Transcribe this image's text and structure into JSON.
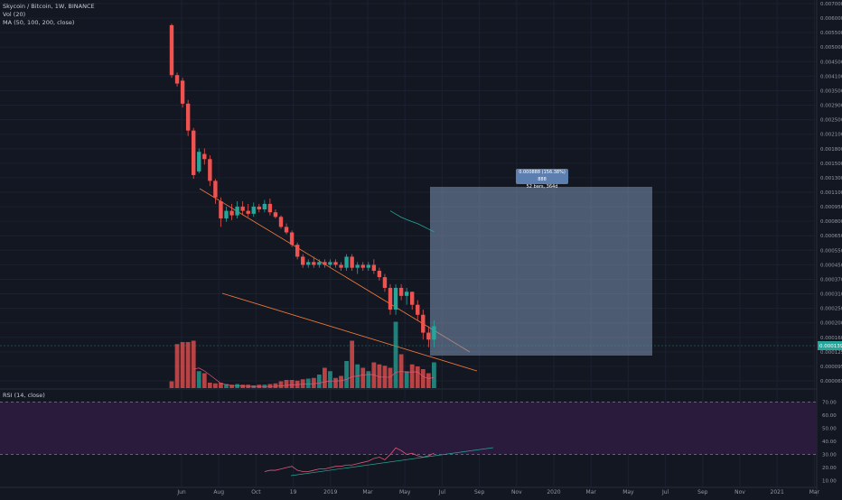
{
  "header": {
    "symbol_line": "Skycoin / Bitcoin, 1W, BINANCE",
    "vol_label": "Vol (20)",
    "ma_label": "MA (50, 100, 200, close)"
  },
  "rsi_panel": {
    "label": "RSI (14, close)"
  },
  "measure": {
    "line1": "0.000888 (156.38%) 888",
    "line2": "52 bars, 364d"
  },
  "price_axis": {
    "ticks": [
      "0.007000",
      "0.006000",
      "0.005500",
      "0.005000",
      "0.004500",
      "0.004100",
      "0.003500",
      "0.002900",
      "0.002500",
      "0.002100",
      "0.001800",
      "0.001500",
      "0.001300",
      "0.001100",
      "0.000950",
      "0.000800",
      "0.000650",
      "0.000550",
      "0.000450",
      "0.000370",
      "0.000310",
      "0.000250",
      "0.000200",
      "0.000160",
      "0.000125",
      "0.000095",
      "0.000069"
    ],
    "current_price": "0.000139"
  },
  "rsi_axis": {
    "ticks": [
      "70.00",
      "60.00",
      "50.00",
      "40.00",
      "30.00",
      "20.00",
      "10.00"
    ]
  },
  "time_axis": {
    "labels": [
      "Jun",
      "Aug",
      "Oct",
      "19",
      "2019",
      "Mar",
      "May",
      "Jul",
      "Sep",
      "Nov",
      "2020",
      "Mar",
      "May",
      "Jul",
      "Sep",
      "Nov",
      "2021",
      "Mar"
    ]
  },
  "colors": {
    "up": "#26a69a",
    "down": "#ef5350",
    "background": "#131722",
    "trendline": "#f57c3b",
    "ma": "#26a69a",
    "rsi_line": "#e0577a",
    "rsi_band": "#2a1b3d",
    "measure_box": "#7e93b5"
  },
  "chart_data": [
    {
      "type": "candlestick",
      "title": "Skycoin / Bitcoin, 1W, BINANCE",
      "y_scale": "log",
      "ylim": [
        6e-05,
        0.0075
      ],
      "candles": [
        {
          "o": 0.0056,
          "h": 0.0057,
          "l": 0.0029,
          "c": 0.003
        },
        {
          "o": 0.003,
          "h": 0.0031,
          "l": 0.0026,
          "c": 0.0027
        },
        {
          "o": 0.0028,
          "h": 0.0029,
          "l": 0.002,
          "c": 0.0021
        },
        {
          "o": 0.0021,
          "h": 0.0022,
          "l": 0.0014,
          "c": 0.0015
        },
        {
          "o": 0.0015,
          "h": 0.00155,
          "l": 0.00082,
          "c": 0.00086
        },
        {
          "o": 0.0009,
          "h": 0.0012,
          "l": 0.00088,
          "c": 0.00115
        },
        {
          "o": 0.00112,
          "h": 0.0012,
          "l": 0.00098,
          "c": 0.00105
        },
        {
          "o": 0.00105,
          "h": 0.0011,
          "l": 0.00075,
          "c": 0.0008
        },
        {
          "o": 0.0008,
          "h": 0.00082,
          "l": 0.0006,
          "c": 0.00065
        },
        {
          "o": 0.00062,
          "h": 0.00065,
          "l": 0.00045,
          "c": 0.0005
        },
        {
          "o": 0.0005,
          "h": 0.00058,
          "l": 0.00048,
          "c": 0.00055
        },
        {
          "o": 0.00055,
          "h": 0.0006,
          "l": 0.00049,
          "c": 0.00052
        },
        {
          "o": 0.00052,
          "h": 0.00062,
          "l": 0.0005,
          "c": 0.00058
        },
        {
          "o": 0.00058,
          "h": 0.00062,
          "l": 0.00052,
          "c": 0.00055
        },
        {
          "o": 0.00055,
          "h": 0.0006,
          "l": 0.00051,
          "c": 0.00053
        },
        {
          "o": 0.00053,
          "h": 0.00061,
          "l": 0.00051,
          "c": 0.00058
        },
        {
          "o": 0.00058,
          "h": 0.0006,
          "l": 0.00054,
          "c": 0.00056
        },
        {
          "o": 0.00056,
          "h": 0.00063,
          "l": 0.00054,
          "c": 0.0006
        },
        {
          "o": 0.0006,
          "h": 0.00064,
          "l": 0.00052,
          "c": 0.00054
        },
        {
          "o": 0.00054,
          "h": 0.00056,
          "l": 0.0005,
          "c": 0.00051
        },
        {
          "o": 0.00051,
          "h": 0.00052,
          "l": 0.00044,
          "c": 0.00045
        },
        {
          "o": 0.00045,
          "h": 0.00047,
          "l": 0.00041,
          "c": 0.00042
        },
        {
          "o": 0.00042,
          "h": 0.00043,
          "l": 0.00035,
          "c": 0.00036
        },
        {
          "o": 0.00036,
          "h": 0.00037,
          "l": 0.0003,
          "c": 0.00031
        },
        {
          "o": 0.00031,
          "h": 0.00032,
          "l": 0.00027,
          "c": 0.00028
        },
        {
          "o": 0.00028,
          "h": 0.0003,
          "l": 0.00027,
          "c": 0.00029
        },
        {
          "o": 0.00029,
          "h": 0.00031,
          "l": 0.00027,
          "c": 0.00028
        },
        {
          "o": 0.00028,
          "h": 0.0003,
          "l": 0.00027,
          "c": 0.00029
        },
        {
          "o": 0.00029,
          "h": 0.0003,
          "l": 0.00027,
          "c": 0.00028
        },
        {
          "o": 0.00028,
          "h": 0.0003,
          "l": 0.00027,
          "c": 0.00029
        },
        {
          "o": 0.00029,
          "h": 0.0003,
          "l": 0.00027,
          "c": 0.00028
        },
        {
          "o": 0.00028,
          "h": 0.00029,
          "l": 0.00026,
          "c": 0.00027
        },
        {
          "o": 0.00027,
          "h": 0.00032,
          "l": 0.00026,
          "c": 0.00031
        },
        {
          "o": 0.00031,
          "h": 0.00032,
          "l": 0.00026,
          "c": 0.00027
        },
        {
          "o": 0.00027,
          "h": 0.00029,
          "l": 0.00025,
          "c": 0.00028
        },
        {
          "o": 0.00028,
          "h": 0.00029,
          "l": 0.00026,
          "c": 0.00027
        },
        {
          "o": 0.00027,
          "h": 0.00029,
          "l": 0.00026,
          "c": 0.00028
        },
        {
          "o": 0.00028,
          "h": 0.0003,
          "l": 0.00025,
          "c": 0.00026
        },
        {
          "o": 0.00026,
          "h": 0.00027,
          "l": 0.00023,
          "c": 0.00024
        },
        {
          "o": 0.00024,
          "h": 0.00025,
          "l": 0.0002,
          "c": 0.00021
        },
        {
          "o": 0.00021,
          "h": 0.00022,
          "l": 0.00015,
          "c": 0.00016
        },
        {
          "o": 0.00016,
          "h": 0.00022,
          "l": 0.00015,
          "c": 0.00021
        },
        {
          "o": 0.00021,
          "h": 0.00022,
          "l": 0.00018,
          "c": 0.00019
        },
        {
          "o": 0.00019,
          "h": 0.00021,
          "l": 0.00017,
          "c": 0.0002
        },
        {
          "o": 0.0002,
          "h": 0.0002,
          "l": 0.00016,
          "c": 0.00017
        },
        {
          "o": 0.00017,
          "h": 0.00018,
          "l": 0.00014,
          "c": 0.00015
        },
        {
          "o": 0.00015,
          "h": 0.00016,
          "l": 0.00011,
          "c": 0.00012
        },
        {
          "o": 0.00012,
          "h": 0.00013,
          "l": 0.0001,
          "c": 0.00011
        },
        {
          "o": 0.00011,
          "h": 0.00014,
          "l": 0.0001,
          "c": 0.00013
        }
      ],
      "volume": [
        0.1,
        0.65,
        0.68,
        0.68,
        0.7,
        0.25,
        0.22,
        0.08,
        0.07,
        0.08,
        0.06,
        0.05,
        0.06,
        0.05,
        0.05,
        0.04,
        0.05,
        0.05,
        0.06,
        0.07,
        0.1,
        0.12,
        0.12,
        0.11,
        0.13,
        0.14,
        0.15,
        0.2,
        0.3,
        0.25,
        0.15,
        0.18,
        0.4,
        0.7,
        0.35,
        0.3,
        0.25,
        0.38,
        0.35,
        0.33,
        0.3,
        0.98,
        0.5,
        0.25,
        0.35,
        0.32,
        0.28,
        0.22,
        0.38
      ]
    },
    {
      "type": "line",
      "title": "RSI (14, close)",
      "ylim": [
        5,
        75
      ],
      "band": [
        30,
        70
      ],
      "values": [
        null,
        null,
        null,
        null,
        null,
        null,
        null,
        null,
        null,
        null,
        null,
        null,
        null,
        null,
        null,
        null,
        null,
        17,
        18,
        18,
        19,
        20,
        21,
        18,
        17,
        17,
        18,
        19,
        19,
        20,
        21,
        21,
        22,
        22,
        23,
        24,
        25,
        27,
        28,
        26,
        30,
        35,
        33,
        30,
        31,
        29,
        28,
        29,
        31
      ]
    }
  ]
}
